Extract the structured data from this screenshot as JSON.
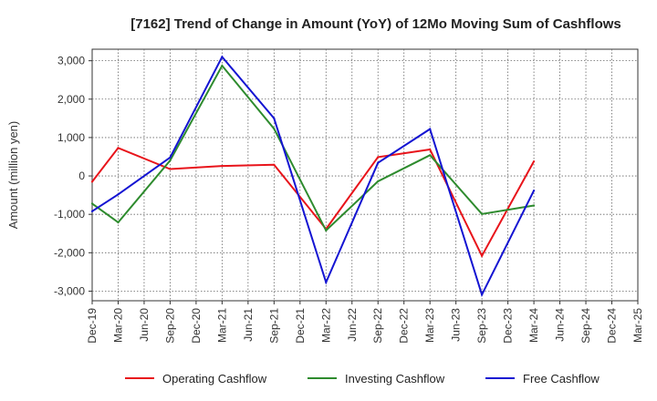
{
  "chart_data": {
    "type": "line",
    "title": "[7162]  Trend of Change in Amount (YoY) of 12Mo Moving Sum of Cashflows",
    "xlabel": "",
    "ylabel": "Amount (million yen)",
    "ylim": [
      -3250,
      3300
    ],
    "yticks": [
      3000,
      2000,
      1000,
      0,
      -1000,
      -2000,
      -3000
    ],
    "ytick_labels": [
      "3,000",
      "2,000",
      "1,000",
      "0",
      "-1,000",
      "-2,000",
      "-3,000"
    ],
    "grid": true,
    "legend_position": "bottom",
    "categories": [
      "Dec-19",
      "Mar-20",
      "Jun-20",
      "Sep-20",
      "Dec-20",
      "Mar-21",
      "Jun-21",
      "Sep-21",
      "Dec-21",
      "Mar-22",
      "Jun-22",
      "Sep-22",
      "Dec-22",
      "Mar-23",
      "Jun-23",
      "Sep-23",
      "Dec-23",
      "Mar-24",
      "Jun-24",
      "Sep-24",
      "Dec-24",
      "Mar-25"
    ],
    "series": [
      {
        "name": "Operating Cashflow",
        "color": "#e8141b",
        "values": [
          -150,
          730,
          null,
          180,
          null,
          260,
          null,
          290,
          null,
          -1380,
          null,
          490,
          null,
          690,
          null,
          -2080,
          null,
          380,
          null,
          null,
          null,
          null
        ]
      },
      {
        "name": "Investing Cashflow",
        "color": "#2e8b2e",
        "values": [
          -720,
          -1210,
          null,
          400,
          null,
          2870,
          null,
          1230,
          null,
          -1420,
          null,
          -140,
          null,
          540,
          null,
          -990,
          null,
          -770,
          null,
          null,
          null,
          null
        ]
      },
      {
        "name": "Free Cashflow",
        "color": "#1414d2",
        "values": [
          -920,
          -480,
          null,
          480,
          null,
          3100,
          null,
          1500,
          null,
          -2770,
          null,
          340,
          null,
          1220,
          null,
          -3090,
          null,
          -380,
          null,
          null,
          null,
          null
        ]
      }
    ]
  }
}
